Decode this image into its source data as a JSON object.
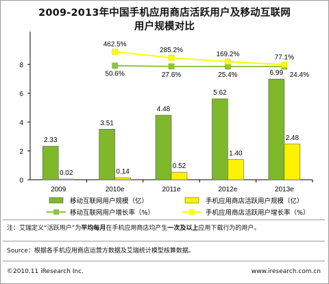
{
  "chart_data": {
    "type": "bar",
    "title_line1": "2009-2013年中国手机应用商店活跃用户及移动互联网",
    "title_line2": "用户规模对比",
    "categories": [
      "2009",
      "2010e",
      "2011e",
      "2012e",
      "2013e"
    ],
    "ylim": [
      0,
      10
    ],
    "yticks": [
      "0",
      "2",
      "4",
      "6",
      "8"
    ],
    "series": [
      {
        "name": "移动互联网用户规模（亿）",
        "kind": "bar",
        "color": "#7fb82a",
        "values": [
          2.33,
          3.51,
          4.48,
          5.62,
          6.99
        ],
        "labels": [
          "2.33",
          "3.51",
          "4.48",
          "5.62",
          "6.99"
        ]
      },
      {
        "name": "手机应用商店活跃用户规模（亿）",
        "kind": "bar",
        "color": "#fff200",
        "values": [
          0.02,
          0.14,
          0.52,
          1.4,
          2.48
        ],
        "labels": [
          "0.02",
          "0.14",
          "0.52",
          "1.40",
          "2.48"
        ]
      },
      {
        "name": "移动互联网用户增长率（%）",
        "kind": "line",
        "color": "#8dc63f",
        "values": [
          null,
          50.6,
          27.6,
          25.4,
          24.4
        ],
        "labels": [
          "",
          "50.6%",
          "27.6%",
          "25.4%",
          "24.4%"
        ]
      },
      {
        "name": "手机应用商店活跃用户增长率（%）",
        "kind": "line",
        "color": "#ffff00",
        "values": [
          null,
          462.5,
          285.2,
          169.2,
          77.1
        ],
        "labels": [
          "",
          "462.5%",
          "285.2%",
          "169.2%",
          "77.1%"
        ]
      }
    ],
    "legend_position": "bottom",
    "grid": false
  },
  "notes": {
    "definition_prefix": "注：艾瑞定义“活跃用户”为",
    "definition_bold1": "平均每月",
    "definition_mid": "在手机应用商店均产生",
    "definition_bold2": "一次及以上",
    "definition_suffix": "应用下载行为的用户。",
    "source": "Source：根据各手机应用商店运营方数据及艾瑞统计模型核算数据。"
  },
  "footer": {
    "copyright": "©2010.11 iResearch Inc.",
    "website": "www.iresearch.com.cn"
  }
}
